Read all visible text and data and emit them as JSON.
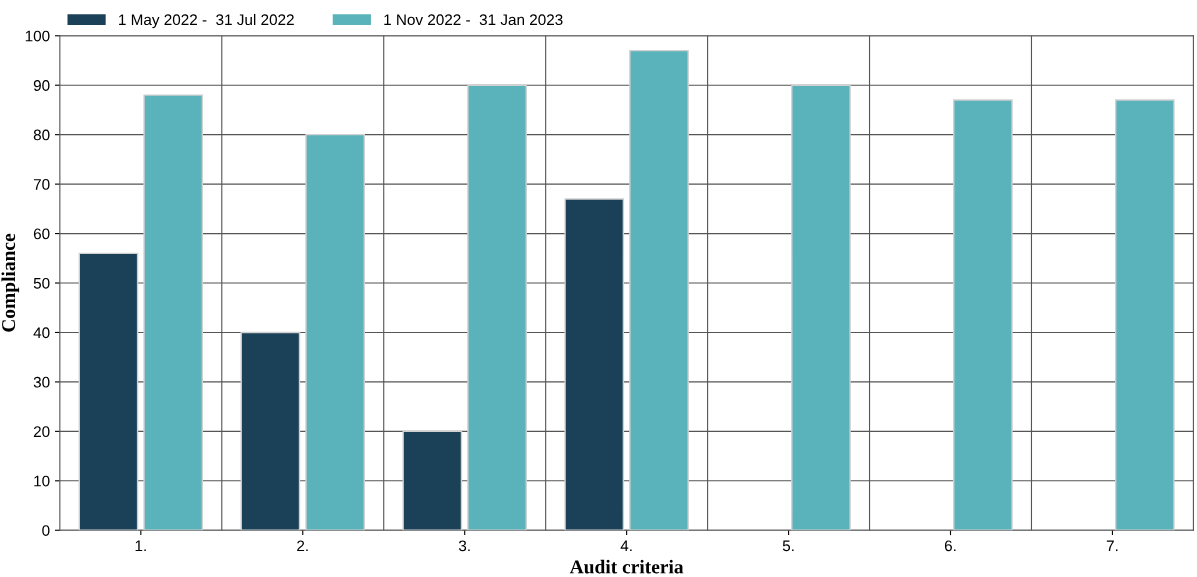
{
  "chart_data": {
    "type": "bar",
    "xlabel": "Audit criteria",
    "ylabel": "Compliance",
    "categories": [
      "1.",
      "2.",
      "3.",
      "4.",
      "5.",
      "6.",
      "7."
    ],
    "series": [
      {
        "name": "1 May 2022 -  31 Jul 2022",
        "color": "#1b4159",
        "values": [
          56,
          40,
          20,
          67,
          null,
          null,
          null
        ]
      },
      {
        "name": "1 Nov 2022 -  31 Jan 2023",
        "color": "#5ab3bb",
        "values": [
          88,
          80,
          90,
          97,
          90,
          87,
          87
        ]
      }
    ],
    "ylim": [
      0,
      100
    ],
    "yticks": [
      0,
      10,
      20,
      30,
      40,
      50,
      60,
      70,
      80,
      90,
      100
    ],
    "grid": true,
    "legend": "top left"
  }
}
